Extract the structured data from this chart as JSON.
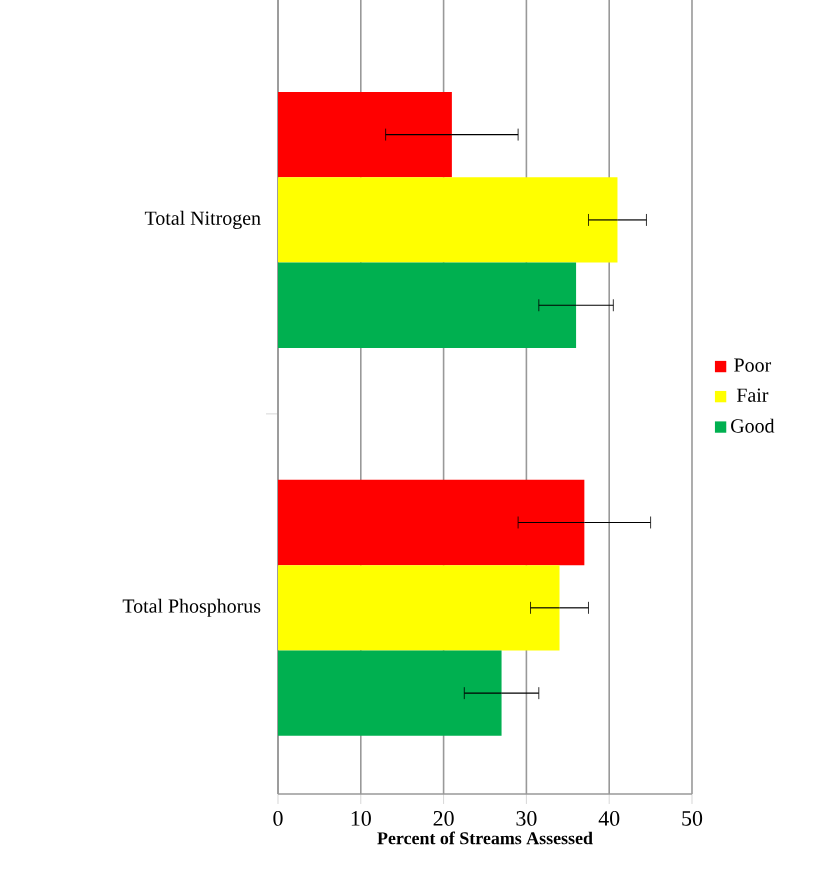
{
  "chart_data": {
    "type": "bar",
    "orientation": "horizontal",
    "xlabel": "Percent of Streams Assessed",
    "categories": [
      "Total Nitrogen",
      "Total Phosphorus"
    ],
    "series": [
      {
        "name": "Poor",
        "color": "#ff0000",
        "values": [
          21,
          37
        ],
        "errors": [
          [
            13,
            29
          ],
          [
            29,
            45
          ]
        ]
      },
      {
        "name": "Fair",
        "color": "#ffff00",
        "values": [
          41,
          34
        ],
        "errors": [
          [
            37.5,
            44.5
          ],
          [
            30.5,
            37.5
          ]
        ]
      },
      {
        "name": "Good",
        "color": "#00b050",
        "values": [
          36,
          27
        ],
        "errors": [
          [
            31.5,
            40.5
          ],
          [
            22.5,
            31.5
          ]
        ]
      }
    ],
    "xlim": [
      0,
      50
    ],
    "xticks": [
      0,
      10,
      20,
      30,
      40,
      50
    ],
    "grid": "x",
    "legend": "right"
  }
}
